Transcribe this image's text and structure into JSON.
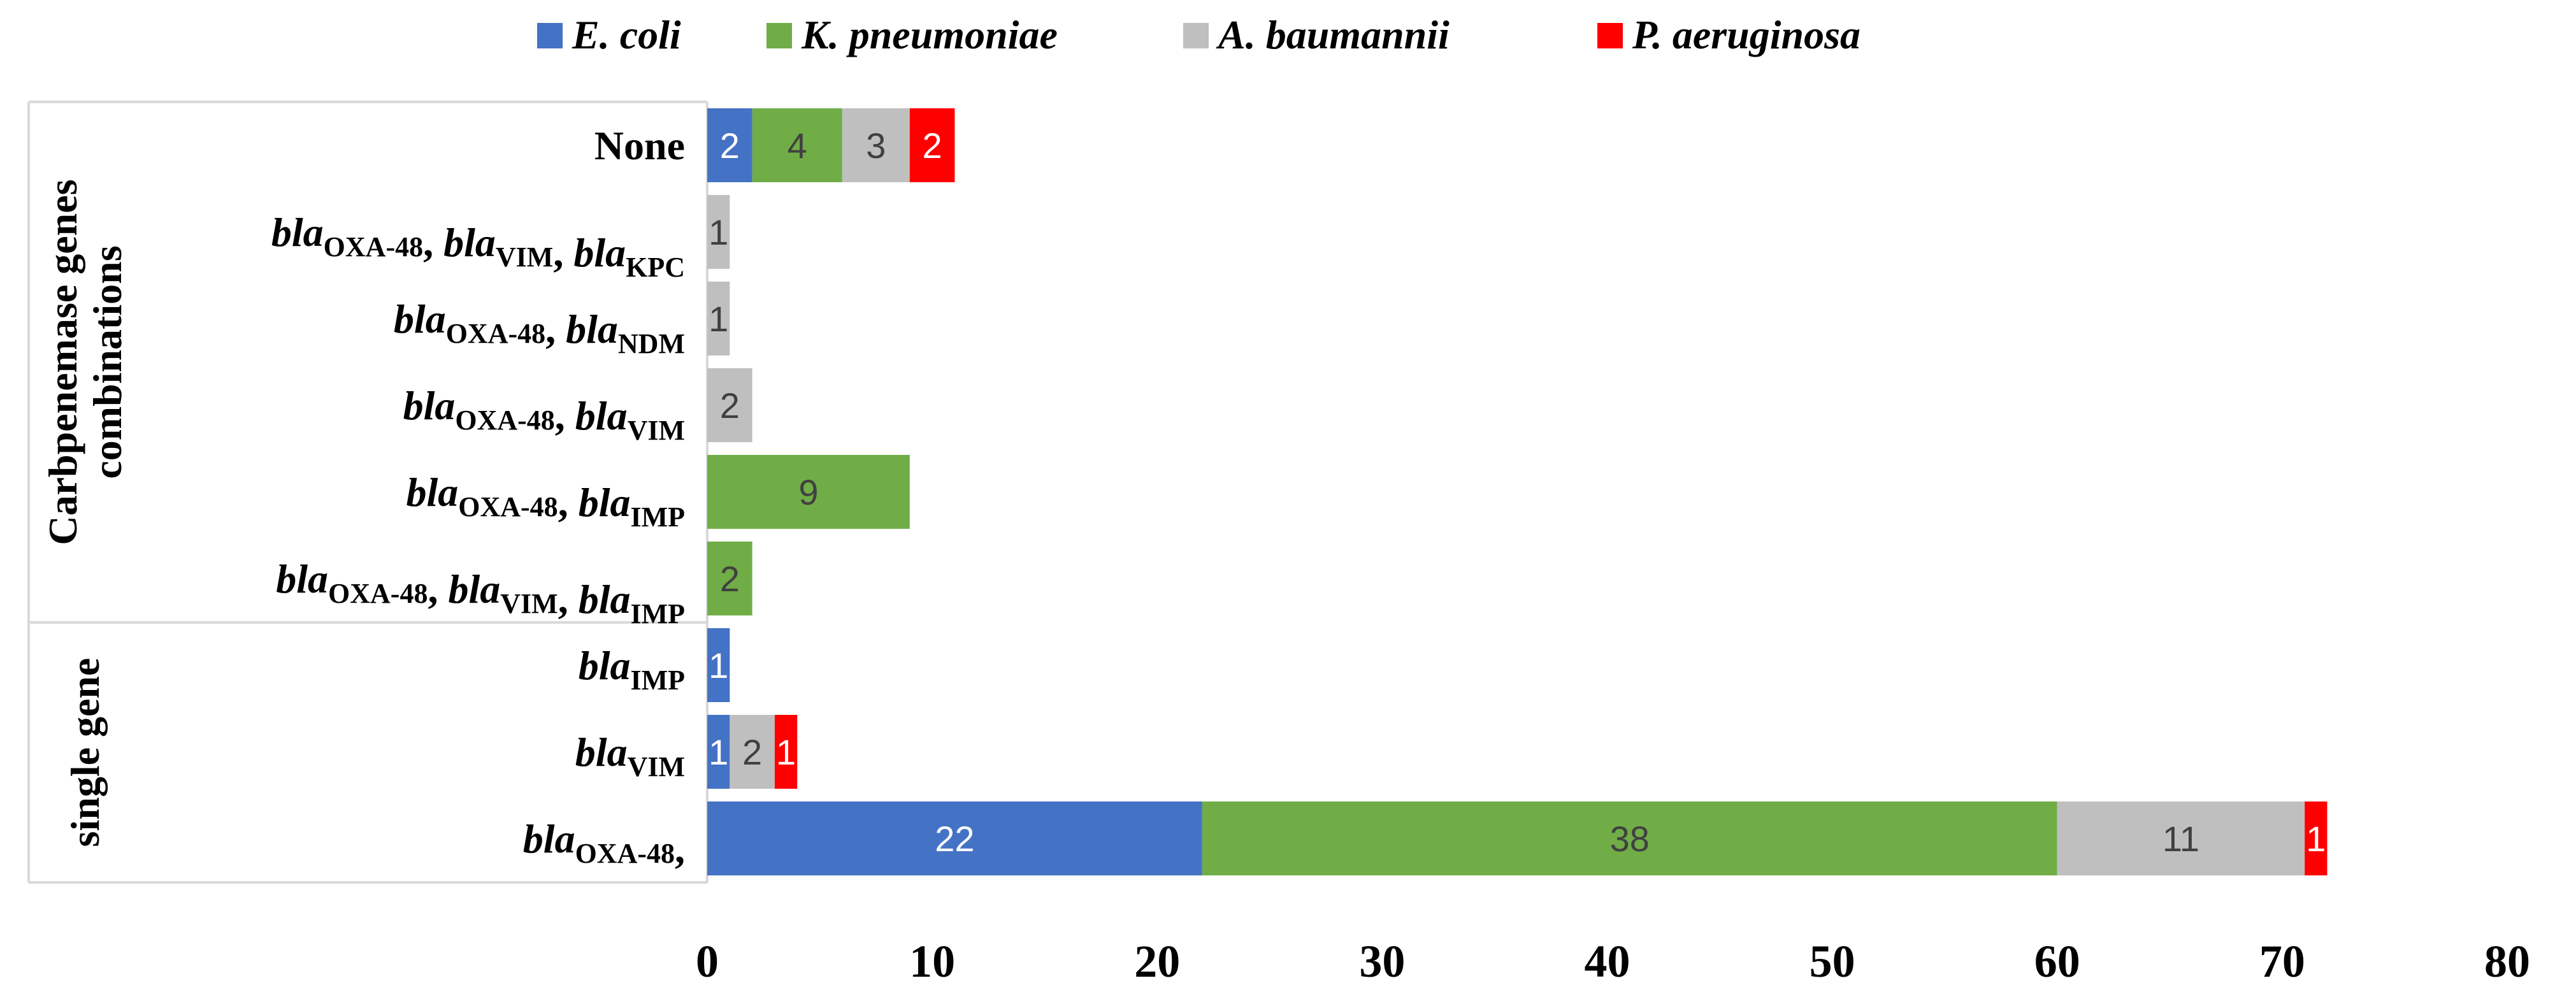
{
  "chart_data": {
    "type": "bar",
    "orientation": "horizontal",
    "stacked": true,
    "legend": {
      "placement": "top",
      "entries": [
        "E. coli",
        "K. pneumoniae",
        "A. baumannii",
        "P. aeruginosa"
      ]
    },
    "colors": [
      "#4472C4",
      "#70AD47",
      "#BFBFBF",
      "#FF0000"
    ],
    "label_colors": [
      "#FFFFFF",
      "#404040",
      "#404040",
      "#FFFFFF"
    ],
    "groups": [
      {
        "label": "Carbpenemase genes combinations",
        "rows": 6
      },
      {
        "label": "single gene",
        "rows": 3
      }
    ],
    "categories": [
      {
        "parts": [
          [
            "None",
            ""
          ]
        ]
      },
      {
        "parts": [
          [
            "bla",
            "OXA-48"
          ],
          [
            ", bla",
            "VIM"
          ],
          [
            ", bla",
            "KPC"
          ]
        ]
      },
      {
        "parts": [
          [
            "bla",
            "OXA-48"
          ],
          [
            ", bla",
            "NDM"
          ]
        ]
      },
      {
        "parts": [
          [
            "bla",
            "OXA-48"
          ],
          [
            ", bla",
            "VIM"
          ]
        ]
      },
      {
        "parts": [
          [
            "bla",
            "OXA-48"
          ],
          [
            ", bla",
            "IMP"
          ]
        ]
      },
      {
        "parts": [
          [
            "bla",
            "OXA-48"
          ],
          [
            ", bla",
            "VIM"
          ],
          [
            ", bla",
            "IMP"
          ]
        ]
      },
      {
        "parts": [
          [
            "bla",
            "IMP"
          ]
        ]
      },
      {
        "parts": [
          [
            "bla",
            "VIM"
          ]
        ]
      },
      {
        "parts": [
          [
            "bla",
            "OXA-48"
          ],
          [
            ",",
            ""
          ]
        ]
      }
    ],
    "series": [
      {
        "name": "E. coli",
        "values": [
          2,
          0,
          0,
          0,
          0,
          0,
          1,
          1,
          22
        ]
      },
      {
        "name": "K. pneumoniae",
        "values": [
          4,
          0,
          0,
          0,
          9,
          2,
          0,
          0,
          38
        ]
      },
      {
        "name": "A. baumannii",
        "values": [
          3,
          1,
          1,
          2,
          0,
          0,
          0,
          2,
          11
        ]
      },
      {
        "name": "P. aeruginosa",
        "values": [
          2,
          0,
          0,
          0,
          0,
          0,
          0,
          1,
          1
        ]
      }
    ],
    "xlim": [
      0,
      80
    ],
    "xticks": [
      0,
      10,
      20,
      30,
      40,
      50,
      60,
      70,
      80
    ],
    "grid": false
  }
}
